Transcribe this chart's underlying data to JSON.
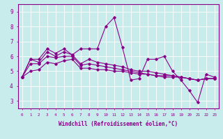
{
  "xlabel": "Windchill (Refroidissement éolien,°C)",
  "ylabel": "",
  "background_color": "#c8ecec",
  "line_color": "#880088",
  "grid_color": "#ffffff",
  "x_values": [
    0,
    1,
    2,
    3,
    4,
    5,
    6,
    7,
    8,
    9,
    10,
    11,
    12,
    13,
    14,
    15,
    16,
    17,
    18,
    19,
    20,
    21,
    22,
    23
  ],
  "series": [
    [
      4.6,
      5.8,
      5.8,
      6.5,
      6.2,
      6.5,
      6.1,
      6.5,
      6.5,
      6.5,
      8.0,
      8.6,
      6.6,
      4.4,
      4.5,
      5.8,
      5.8,
      6.0,
      5.0,
      4.4,
      3.7,
      2.9,
      4.8,
      4.6
    ],
    [
      4.6,
      5.8,
      5.6,
      6.3,
      6.0,
      6.3,
      6.1,
      5.5,
      5.8,
      5.6,
      5.5,
      5.4,
      5.3,
      5.1,
      5.0,
      5.0,
      4.9,
      4.8,
      4.7,
      4.6,
      4.5,
      4.4,
      4.5,
      4.5
    ],
    [
      4.6,
      5.5,
      5.5,
      6.0,
      5.9,
      6.0,
      6.0,
      5.4,
      5.5,
      5.4,
      5.3,
      5.2,
      5.1,
      5.0,
      4.9,
      4.8,
      4.7,
      4.7,
      4.7,
      4.6,
      4.5,
      4.4,
      4.5,
      4.5
    ],
    [
      4.6,
      5.0,
      5.1,
      5.6,
      5.5,
      5.7,
      5.8,
      5.2,
      5.2,
      5.1,
      5.1,
      5.0,
      5.0,
      4.9,
      4.8,
      4.8,
      4.7,
      4.6,
      4.6,
      4.6,
      4.5,
      4.4,
      4.5,
      4.5
    ]
  ],
  "ylim": [
    2.5,
    9.5
  ],
  "yticks": [
    3,
    4,
    5,
    6,
    7,
    8,
    9
  ],
  "xticks": [
    0,
    1,
    2,
    3,
    4,
    5,
    6,
    7,
    8,
    9,
    10,
    11,
    12,
    13,
    14,
    15,
    16,
    17,
    18,
    19,
    20,
    21,
    22,
    23
  ],
  "marker": "D",
  "markersize": 1.8,
  "linewidth": 0.8
}
